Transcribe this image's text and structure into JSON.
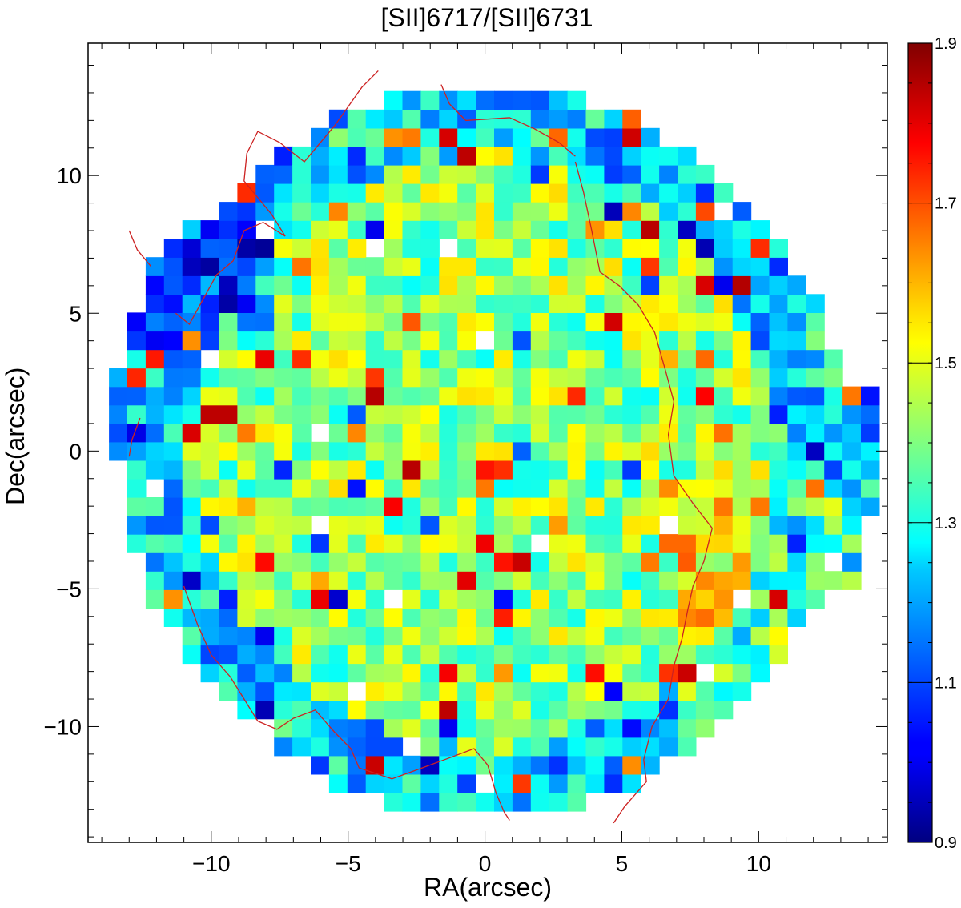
{
  "chart_data": {
    "type": "heatmap",
    "title": "[SII]6717/[SII]6731",
    "xlabel": "RA(arcsec)",
    "ylabel": "Dec(arcsec)",
    "xlim": [
      -14.5,
      14.7
    ],
    "ylim": [
      -14.2,
      14.8
    ],
    "xticks": [
      -10,
      -5,
      0,
      5,
      10
    ],
    "xtick_labels": [
      "−10",
      "−5",
      "0",
      "5",
      "10"
    ],
    "yticks": [
      -10,
      -5,
      0,
      5,
      10
    ],
    "ytick_labels": [
      "−10",
      "−5",
      "0",
      "5",
      "10"
    ],
    "colorbar": {
      "min": 0.9,
      "max": 1.9,
      "colormap": "jet",
      "ticks": [
        0.9,
        1.1,
        1.3,
        1.5,
        1.7,
        1.9
      ],
      "tick_labels": [
        "0.9",
        "1.1",
        "1.3",
        "1.5",
        "1.7",
        "1.9"
      ]
    },
    "pixel_size_arcsec": 0.67,
    "map_center_arcsec": [
      0,
      0
    ],
    "outline_radius_arcsec": 13.2,
    "typical_ratio": 1.42,
    "contour_color": "#cc2222",
    "contour_level_description": "ratio contour",
    "contours": [
      [
        [
          -3.9,
          13.8
        ],
        [
          -4.5,
          13.2
        ],
        [
          -5.0,
          12.5
        ],
        [
          -5.5,
          11.8
        ],
        [
          -6.6,
          10.5
        ],
        [
          -7.5,
          11.2
        ],
        [
          -8.3,
          11.6
        ],
        [
          -8.7,
          10.8
        ],
        [
          -8.8,
          9.8
        ],
        [
          -7.8,
          8.6
        ],
        [
          -7.3,
          7.8
        ],
        [
          -8.1,
          8.3
        ],
        [
          -8.8,
          8.0
        ],
        [
          -9.2,
          6.9
        ],
        [
          -9.8,
          6.4
        ],
        [
          -10.3,
          5.5
        ],
        [
          -10.8,
          4.6
        ],
        [
          -11.3,
          5.0
        ]
      ],
      [
        [
          -1.6,
          13.3
        ],
        [
          -1.3,
          12.6
        ],
        [
          -0.7,
          12.0
        ],
        [
          0.9,
          12.1
        ],
        [
          1.8,
          11.7
        ],
        [
          2.7,
          11.2
        ],
        [
          3.3,
          10.7
        ]
      ],
      [
        [
          3.3,
          10.5
        ],
        [
          3.6,
          9.4
        ],
        [
          3.9,
          8.0
        ],
        [
          4.1,
          7.0
        ],
        [
          4.2,
          6.5
        ],
        [
          4.9,
          6.0
        ],
        [
          5.6,
          5.3
        ],
        [
          6.2,
          4.3
        ],
        [
          6.6,
          2.9
        ],
        [
          6.9,
          1.8
        ],
        [
          6.7,
          0.6
        ],
        [
          6.9,
          -0.9
        ],
        [
          7.6,
          -1.9
        ],
        [
          8.3,
          -2.8
        ],
        [
          8.0,
          -4.0
        ],
        [
          7.6,
          -4.9
        ],
        [
          7.4,
          -5.8
        ],
        [
          7.2,
          -6.8
        ],
        [
          6.9,
          -7.8
        ],
        [
          6.7,
          -9.0
        ],
        [
          6.1,
          -10.0
        ],
        [
          5.8,
          -11.2
        ],
        [
          5.9,
          -12.0
        ],
        [
          5.1,
          -12.9
        ],
        [
          4.7,
          -13.5
        ]
      ],
      [
        [
          -11.0,
          -4.9
        ],
        [
          -10.5,
          -6.3
        ],
        [
          -10.0,
          -7.4
        ],
        [
          -9.3,
          -8.2
        ],
        [
          -8.8,
          -9.0
        ],
        [
          -8.3,
          -9.8
        ],
        [
          -7.6,
          -10.1
        ],
        [
          -7.0,
          -9.7
        ],
        [
          -6.2,
          -9.4
        ],
        [
          -5.5,
          -10.2
        ],
        [
          -4.9,
          -10.8
        ],
        [
          -4.6,
          -11.5
        ],
        [
          -3.4,
          -11.9
        ],
        [
          -2.3,
          -11.5
        ],
        [
          -1.2,
          -11.1
        ],
        [
          -0.4,
          -10.8
        ],
        [
          0.1,
          -11.4
        ],
        [
          0.4,
          -12.4
        ],
        [
          0.7,
          -13.1
        ],
        [
          0.9,
          -13.4
        ]
      ],
      [
        [
          -12.2,
          6.7
        ],
        [
          -12.7,
          7.3
        ],
        [
          -13.0,
          8.0
        ]
      ],
      [
        [
          -12.6,
          1.2
        ],
        [
          -12.9,
          0.4
        ],
        [
          -13.0,
          -0.2
        ]
      ]
    ]
  }
}
